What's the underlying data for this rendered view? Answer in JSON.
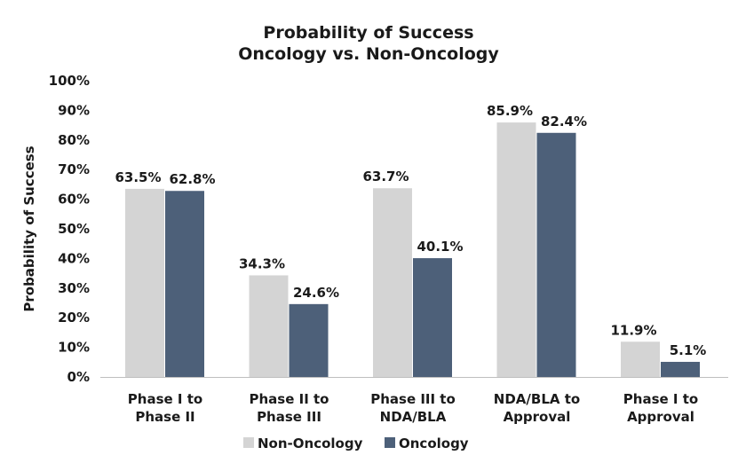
{
  "chart_data": {
    "type": "bar",
    "title": [
      "Probability of Success",
      "Oncology vs. Non-Oncology"
    ],
    "ylabel": "Probability of Success",
    "xlabel": "",
    "ylim": [
      0,
      100
    ],
    "yticks": [
      "0%",
      "10%",
      "20%",
      "30%",
      "40%",
      "50%",
      "60%",
      "70%",
      "80%",
      "90%",
      "100%"
    ],
    "categories": [
      [
        "Phase I to",
        "Phase II"
      ],
      [
        "Phase II to",
        "Phase III"
      ],
      [
        "Phase III to",
        "NDA/BLA"
      ],
      [
        "NDA/BLA to",
        "Approval"
      ],
      [
        "Phase I to",
        "Approval"
      ]
    ],
    "series": [
      {
        "name": "Non-Oncology",
        "color": "#d4d4d4",
        "values": [
          63.5,
          34.3,
          63.7,
          85.9,
          11.9
        ],
        "labels": [
          "63.5%",
          "34.3%",
          "63.7%",
          "85.9%",
          "11.9%"
        ]
      },
      {
        "name": "Oncology",
        "color": "#4d6079",
        "values": [
          62.8,
          24.6,
          40.1,
          82.4,
          5.1
        ],
        "labels": [
          "62.8%",
          "24.6%",
          "40.1%",
          "82.4%",
          "5.1%"
        ]
      }
    ],
    "grid": false,
    "legend_position": "bottom-center"
  }
}
